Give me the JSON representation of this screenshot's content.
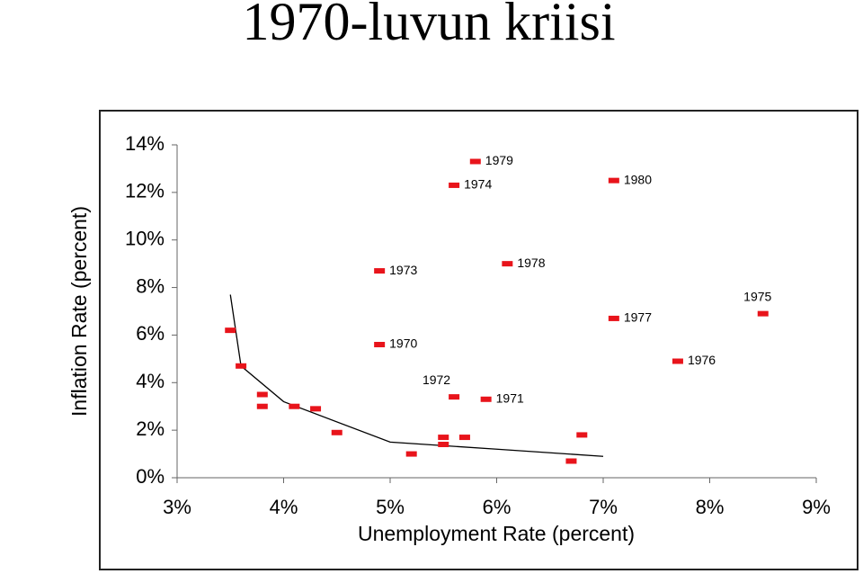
{
  "title": "1970-luvun kriisi",
  "chart_data": {
    "type": "scatter",
    "xlabel": "Unemployment Rate (percent)",
    "ylabel": "Inflation Rate (percent)",
    "x": [
      3.5,
      3.6,
      3.8,
      3.8,
      4.1,
      4.3,
      4.5,
      5.2,
      5.5,
      5.5,
      5.7,
      6.7,
      6.8,
      4.9,
      5.9,
      5.6,
      4.9,
      5.6,
      8.5,
      7.7,
      7.1,
      6.1,
      5.8,
      7.1
    ],
    "values": [
      6.2,
      4.7,
      3.5,
      3.0,
      3.0,
      2.9,
      1.9,
      1.0,
      1.7,
      1.4,
      1.7,
      0.7,
      1.8,
      5.6,
      3.3,
      3.4,
      8.7,
      12.3,
      6.9,
      4.9,
      6.7,
      9.0,
      13.3,
      12.5
    ],
    "point_labels": [
      null,
      null,
      null,
      null,
      null,
      null,
      null,
      null,
      null,
      null,
      null,
      null,
      null,
      "1970",
      "1971",
      "1972",
      "1973",
      "1974",
      "1975",
      "1976",
      "1977",
      "1978",
      "1979",
      "1980"
    ],
    "color": "#e8141b",
    "curve": {
      "x": [
        3.5,
        3.6,
        4,
        5,
        6,
        7
      ],
      "values": [
        7.7,
        4.7,
        3.2,
        1.5,
        1.2,
        0.9
      ],
      "color": "#000000"
    },
    "xlim": [
      3,
      9
    ],
    "ylim": [
      0,
      14
    ],
    "xticks": [
      {
        "value": 3,
        "label": "3%"
      },
      {
        "value": 4,
        "label": "4%"
      },
      {
        "value": 5,
        "label": "5%"
      },
      {
        "value": 6,
        "label": "6%"
      },
      {
        "value": 7,
        "label": "7%"
      },
      {
        "value": 8,
        "label": "8%"
      },
      {
        "value": 9,
        "label": "9%"
      }
    ],
    "yticks": [
      {
        "value": 0,
        "label": "0%"
      },
      {
        "value": 2,
        "label": "2%"
      },
      {
        "value": 4,
        "label": "4%"
      },
      {
        "value": 6,
        "label": "6%"
      },
      {
        "value": 8,
        "label": "8%"
      },
      {
        "value": 10,
        "label": "10%"
      },
      {
        "value": 12,
        "label": "12%"
      },
      {
        "value": 14,
        "label": "14%"
      }
    ],
    "grid": false
  }
}
